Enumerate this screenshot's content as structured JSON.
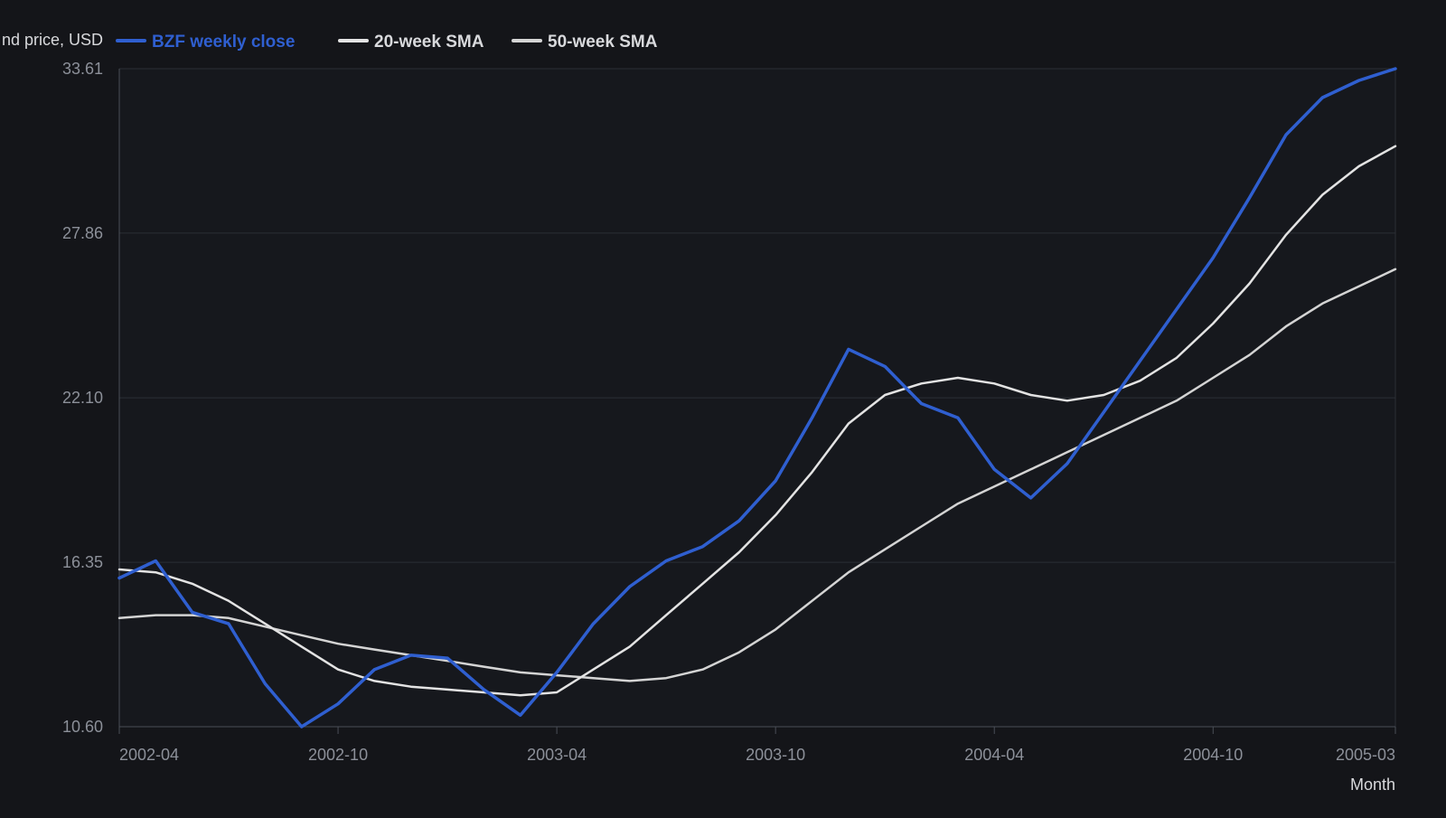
{
  "colors": {
    "background": "#141519",
    "plot_background": "#16181d",
    "grid": "#2b2e35",
    "axis": "#4a4e57",
    "tick_text": "#8c9099",
    "label_text": "#d8d9dc",
    "primary_series": "#2f5fd0",
    "secondary_series": "#e3e3e3",
    "tertiary_series": "#d4d4d4"
  },
  "chart_data": {
    "type": "line",
    "title": "",
    "ylabel": "nd price, USD",
    "xlabel": "Month",
    "legend_position": "top-left",
    "grid": true,
    "ylim": [
      10.6,
      33.61
    ],
    "y_ticks": [
      "10.60",
      "16.35",
      "22.10",
      "27.86",
      "33.61"
    ],
    "x_range": [
      "2002-04",
      "2005-03"
    ],
    "x_ticks": [
      "2002-04",
      "2002-10",
      "2003-04",
      "2003-10",
      "2004-04",
      "2004-10",
      "2005-03"
    ],
    "series": [
      {
        "name": "BZF weekly close",
        "x": [
          "2002-04",
          "2002-05",
          "2002-06",
          "2002-07",
          "2002-08",
          "2002-09",
          "2002-10",
          "2002-11",
          "2002-12",
          "2003-01",
          "2003-02",
          "2003-03",
          "2003-04",
          "2003-05",
          "2003-06",
          "2003-07",
          "2003-08",
          "2003-09",
          "2003-10",
          "2003-11",
          "2003-12",
          "2004-01",
          "2004-02",
          "2004-03",
          "2004-04",
          "2004-05",
          "2004-06",
          "2004-07",
          "2004-08",
          "2004-09",
          "2004-10",
          "2004-11",
          "2004-12",
          "2005-01",
          "2005-02",
          "2005-03"
        ],
        "values": [
          15.8,
          16.4,
          14.6,
          14.2,
          12.1,
          10.6,
          11.4,
          12.6,
          13.1,
          13.0,
          11.9,
          11.0,
          12.5,
          14.2,
          15.5,
          16.4,
          16.9,
          17.8,
          19.2,
          21.4,
          23.8,
          23.2,
          21.9,
          21.4,
          19.6,
          18.6,
          19.8,
          21.6,
          23.4,
          25.2,
          27.0,
          29.1,
          31.3,
          32.6,
          33.2,
          33.61
        ]
      },
      {
        "name": "20-week SMA",
        "x": [
          "2002-04",
          "2002-05",
          "2002-06",
          "2002-07",
          "2002-08",
          "2002-09",
          "2002-10",
          "2002-11",
          "2002-12",
          "2003-01",
          "2003-02",
          "2003-03",
          "2003-04",
          "2003-05",
          "2003-06",
          "2003-07",
          "2003-08",
          "2003-09",
          "2003-10",
          "2003-11",
          "2003-12",
          "2004-01",
          "2004-02",
          "2004-03",
          "2004-04",
          "2004-05",
          "2004-06",
          "2004-07",
          "2004-08",
          "2004-09",
          "2004-10",
          "2004-11",
          "2004-12",
          "2005-01",
          "2005-02",
          "2005-03"
        ],
        "values": [
          16.1,
          16.0,
          15.6,
          15.0,
          14.2,
          13.4,
          12.6,
          12.2,
          12.0,
          11.9,
          11.8,
          11.7,
          11.8,
          12.6,
          13.4,
          14.5,
          15.6,
          16.7,
          18.0,
          19.5,
          21.2,
          22.2,
          22.6,
          22.8,
          22.6,
          22.2,
          22.0,
          22.2,
          22.7,
          23.5,
          24.7,
          26.1,
          27.8,
          29.2,
          30.2,
          30.9
        ]
      },
      {
        "name": "50-week SMA",
        "x": [
          "2002-04",
          "2002-05",
          "2002-06",
          "2002-07",
          "2002-08",
          "2002-09",
          "2002-10",
          "2002-11",
          "2002-12",
          "2003-01",
          "2003-02",
          "2003-03",
          "2003-04",
          "2003-05",
          "2003-06",
          "2003-07",
          "2003-08",
          "2003-09",
          "2003-10",
          "2003-11",
          "2003-12",
          "2004-01",
          "2004-02",
          "2004-03",
          "2004-04",
          "2004-05",
          "2004-06",
          "2004-07",
          "2004-08",
          "2004-09",
          "2004-10",
          "2004-11",
          "2004-12",
          "2005-01",
          "2005-02",
          "2005-03"
        ],
        "values": [
          14.4,
          14.5,
          14.5,
          14.4,
          14.1,
          13.8,
          13.5,
          13.3,
          13.1,
          12.9,
          12.7,
          12.5,
          12.4,
          12.3,
          12.2,
          12.3,
          12.6,
          13.2,
          14.0,
          15.0,
          16.0,
          16.8,
          17.6,
          18.4,
          19.0,
          19.6,
          20.2,
          20.8,
          21.4,
          22.0,
          22.8,
          23.6,
          24.6,
          25.4,
          26.0,
          26.6
        ]
      }
    ]
  }
}
